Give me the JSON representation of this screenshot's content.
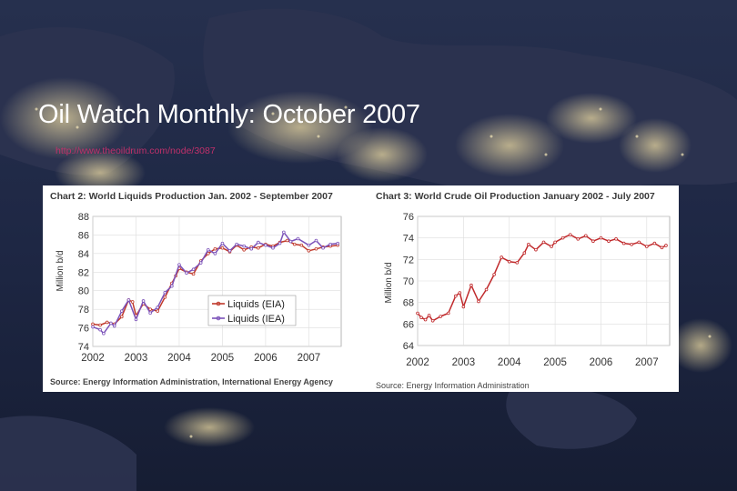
{
  "slide": {
    "title": "Oil Watch Monthly: October 2007",
    "link": "http://www.theoildrum.com/node/3087"
  },
  "colors": {
    "background": "#1c2440",
    "eia": "#c0392b",
    "iea": "#7b52b9",
    "crude": "#c0292b"
  },
  "chart_data": [
    {
      "type": "line",
      "title": "Chart 2:  World Liquids Production Jan. 2002 - September 2007",
      "ylabel": "Million b/d",
      "xlabel": "",
      "source": "Source:  Energy Information Administration, International Energy Agency",
      "ylim": [
        74,
        88
      ],
      "yticks": [
        "88",
        "86",
        "84",
        "82",
        "80",
        "78",
        "76",
        "74"
      ],
      "xlim": [
        2002,
        2007.75
      ],
      "xticks": [
        "2002",
        "2003",
        "2004",
        "2005",
        "2006",
        "2007"
      ],
      "grid": true,
      "legend_position": "bottom-center",
      "series": [
        {
          "name": "Liquids (EIA)",
          "color": "#c0392b",
          "points": [
            [
              2002.0,
              76.4
            ],
            [
              2002.17,
              76.3
            ],
            [
              2002.33,
              76.6
            ],
            [
              2002.5,
              76.4
            ],
            [
              2002.67,
              77.2
            ],
            [
              2002.83,
              79.0
            ],
            [
              2002.92,
              78.8
            ],
            [
              2003.0,
              77.3
            ],
            [
              2003.17,
              78.6
            ],
            [
              2003.33,
              78.0
            ],
            [
              2003.5,
              77.8
            ],
            [
              2003.67,
              79.3
            ],
            [
              2003.83,
              80.8
            ],
            [
              2003.92,
              81.6
            ],
            [
              2004.0,
              82.4
            ],
            [
              2004.17,
              82.0
            ],
            [
              2004.33,
              81.8
            ],
            [
              2004.5,
              83.2
            ],
            [
              2004.67,
              84.0
            ],
            [
              2004.83,
              84.5
            ],
            [
              2005.0,
              84.6
            ],
            [
              2005.17,
              84.2
            ],
            [
              2005.33,
              84.9
            ],
            [
              2005.5,
              84.4
            ],
            [
              2005.67,
              84.7
            ],
            [
              2005.83,
              84.6
            ],
            [
              2006.0,
              85.0
            ],
            [
              2006.17,
              84.8
            ],
            [
              2006.33,
              85.2
            ],
            [
              2006.5,
              85.4
            ],
            [
              2006.67,
              85.0
            ],
            [
              2006.83,
              84.9
            ],
            [
              2007.0,
              84.3
            ],
            [
              2007.17,
              84.5
            ],
            [
              2007.33,
              84.7
            ],
            [
              2007.5,
              84.8
            ],
            [
              2007.67,
              84.9
            ]
          ]
        },
        {
          "name": "Liquids (IEA)",
          "color": "#7b52b9",
          "points": [
            [
              2002.0,
              76.1
            ],
            [
              2002.17,
              75.8
            ],
            [
              2002.25,
              75.4
            ],
            [
              2002.42,
              76.5
            ],
            [
              2002.5,
              76.2
            ],
            [
              2002.67,
              77.8
            ],
            [
              2002.83,
              79.0
            ],
            [
              2003.0,
              76.9
            ],
            [
              2003.17,
              78.9
            ],
            [
              2003.33,
              77.6
            ],
            [
              2003.5,
              78.2
            ],
            [
              2003.67,
              79.8
            ],
            [
              2003.83,
              80.5
            ],
            [
              2004.0,
              82.8
            ],
            [
              2004.17,
              81.9
            ],
            [
              2004.33,
              82.3
            ],
            [
              2004.5,
              83.0
            ],
            [
              2004.67,
              84.4
            ],
            [
              2004.83,
              84.0
            ],
            [
              2005.0,
              85.1
            ],
            [
              2005.17,
              84.3
            ],
            [
              2005.33,
              85.0
            ],
            [
              2005.5,
              84.8
            ],
            [
              2005.67,
              84.5
            ],
            [
              2005.83,
              85.2
            ],
            [
              2006.0,
              84.9
            ],
            [
              2006.17,
              84.6
            ],
            [
              2006.33,
              85.1
            ],
            [
              2006.42,
              86.3
            ],
            [
              2006.58,
              85.3
            ],
            [
              2006.75,
              85.6
            ],
            [
              2007.0,
              84.9
            ],
            [
              2007.17,
              85.4
            ],
            [
              2007.33,
              84.6
            ],
            [
              2007.5,
              85.0
            ],
            [
              2007.67,
              85.1
            ]
          ]
        }
      ]
    },
    {
      "type": "line",
      "title": "Chart 3:  World Crude Oil Production January 2002 - July 2007",
      "ylabel": "Million b/d",
      "xlabel": "",
      "source": "Source: Energy Information Administration",
      "ylim": [
        64,
        76
      ],
      "yticks": [
        "76",
        "74",
        "72",
        "70",
        "68",
        "66",
        "64"
      ],
      "xlim": [
        2002,
        2007.5
      ],
      "xticks": [
        "2002",
        "2003",
        "2004",
        "2005",
        "2006",
        "2007"
      ],
      "grid": true,
      "series": [
        {
          "name": "",
          "color": "#c0292b",
          "points": [
            [
              2002.0,
              67.0
            ],
            [
              2002.08,
              66.6
            ],
            [
              2002.17,
              66.4
            ],
            [
              2002.25,
              66.8
            ],
            [
              2002.33,
              66.3
            ],
            [
              2002.5,
              66.7
            ],
            [
              2002.67,
              67.0
            ],
            [
              2002.83,
              68.6
            ],
            [
              2002.92,
              68.9
            ],
            [
              2003.0,
              67.6
            ],
            [
              2003.17,
              69.6
            ],
            [
              2003.33,
              68.1
            ],
            [
              2003.5,
              69.2
            ],
            [
              2003.67,
              70.6
            ],
            [
              2003.83,
              72.2
            ],
            [
              2004.0,
              71.8
            ],
            [
              2004.17,
              71.7
            ],
            [
              2004.33,
              72.6
            ],
            [
              2004.42,
              73.4
            ],
            [
              2004.58,
              72.9
            ],
            [
              2004.75,
              73.6
            ],
            [
              2004.92,
              73.2
            ],
            [
              2005.0,
              73.6
            ],
            [
              2005.17,
              74.0
            ],
            [
              2005.33,
              74.3
            ],
            [
              2005.5,
              73.9
            ],
            [
              2005.67,
              74.2
            ],
            [
              2005.83,
              73.7
            ],
            [
              2006.0,
              74.0
            ],
            [
              2006.17,
              73.7
            ],
            [
              2006.33,
              73.9
            ],
            [
              2006.5,
              73.5
            ],
            [
              2006.67,
              73.4
            ],
            [
              2006.83,
              73.6
            ],
            [
              2007.0,
              73.2
            ],
            [
              2007.17,
              73.5
            ],
            [
              2007.33,
              73.1
            ],
            [
              2007.42,
              73.3
            ]
          ]
        }
      ]
    }
  ]
}
